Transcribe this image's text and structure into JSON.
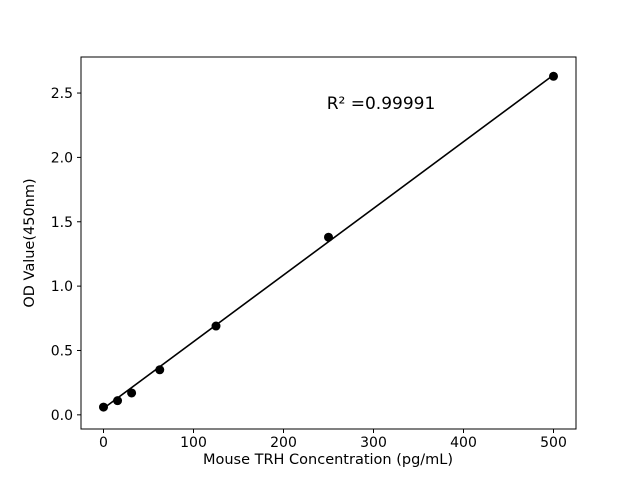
{
  "chart_data": {
    "type": "scatter",
    "title": "",
    "xlabel": "Mouse TRH Concentration (pg/mL)",
    "ylabel": "OD Value(450nm)",
    "annotation": "R² =0.99991",
    "x": [
      0,
      15.6,
      31.25,
      62.5,
      125,
      250,
      500
    ],
    "y": [
      0.06,
      0.11,
      0.17,
      0.35,
      0.69,
      1.38,
      2.63
    ],
    "fit_line": {
      "x": [
        0,
        500
      ],
      "y": [
        0.05,
        2.64
      ]
    },
    "xticks": {
      "values": [
        0,
        100,
        200,
        300,
        400,
        500
      ],
      "labels": [
        "0",
        "100",
        "200",
        "300",
        "400",
        "500"
      ]
    },
    "yticks": {
      "values": [
        0.0,
        0.5,
        1.0,
        1.5,
        2.0,
        2.5
      ],
      "labels": [
        "0.0",
        "0.5",
        "1.0",
        "1.5",
        "2.0",
        "2.5"
      ]
    },
    "xlim": [
      -25,
      525
    ],
    "ylim": [
      -0.11,
      2.78
    ],
    "grid": false,
    "legend": null,
    "marker_color": "#000000",
    "line_color": "#000000",
    "axis_color": "#000000",
    "background_color": "#ffffff"
  }
}
